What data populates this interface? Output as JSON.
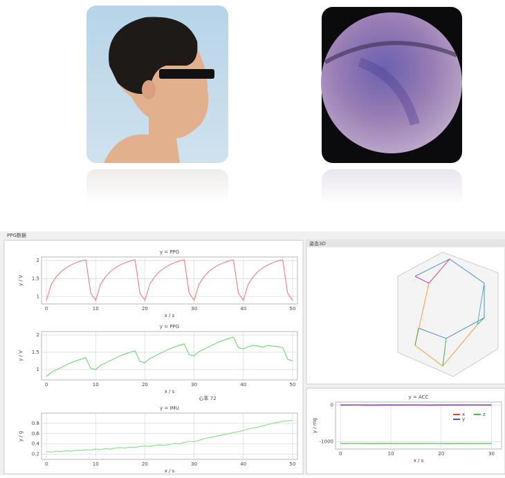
{
  "window": {
    "title": "PPG数据",
    "panel3d_title": "姿态3D",
    "status": "心率 72"
  },
  "plots": [
    {
      "title": "y = PPG",
      "xlabel": "x / s",
      "ylabel": "y / V",
      "x": [
        0,
        1,
        2,
        3,
        4,
        5,
        6,
        7,
        8,
        9,
        10,
        11,
        12,
        13,
        14,
        15,
        16,
        17,
        18,
        19,
        20,
        21,
        22,
        23,
        24,
        25,
        26,
        27,
        28,
        29,
        30,
        31,
        32,
        33,
        34,
        35,
        36,
        37,
        38,
        39,
        40,
        41,
        42,
        43,
        44,
        45,
        46,
        47,
        48,
        49,
        50
      ],
      "xlim": [
        -1,
        51
      ],
      "xticks": [
        0,
        10,
        20,
        30,
        40,
        50
      ],
      "ylim": [
        0.8,
        2.1
      ],
      "yticks": [
        1,
        1.5,
        2
      ],
      "series": [
        {
          "color": "#e8868a",
          "values": [
            0.9,
            1.35,
            1.55,
            1.7,
            1.8,
            1.88,
            1.94,
            1.99,
            2.02,
            1.1,
            0.9,
            1.35,
            1.55,
            1.7,
            1.8,
            1.88,
            1.94,
            1.99,
            2.02,
            1.1,
            0.9,
            1.35,
            1.55,
            1.7,
            1.8,
            1.88,
            1.94,
            1.99,
            2.02,
            1.1,
            0.9,
            1.35,
            1.55,
            1.7,
            1.8,
            1.88,
            1.94,
            1.99,
            2.02,
            1.1,
            0.9,
            1.35,
            1.55,
            1.7,
            1.8,
            1.88,
            1.94,
            1.99,
            2.02,
            1.1,
            0.9
          ]
        }
      ]
    },
    {
      "title": "y = PPG",
      "xlabel": "x / s",
      "ylabel": "y / V",
      "x": [
        0,
        1,
        2,
        3,
        4,
        5,
        6,
        7,
        8,
        9,
        10,
        11,
        12,
        13,
        14,
        15,
        16,
        17,
        18,
        19,
        20,
        21,
        22,
        23,
        24,
        25,
        26,
        27,
        28,
        29,
        30,
        31,
        32,
        33,
        34,
        35,
        36,
        37,
        38,
        39,
        40,
        41,
        42,
        43,
        44,
        45,
        46,
        47,
        48,
        49,
        50
      ],
      "xlim": [
        -1,
        51
      ],
      "xticks": [
        0,
        10,
        20,
        30,
        40,
        50
      ],
      "ylim": [
        0.7,
        2.1
      ],
      "yticks": [
        1,
        1.5,
        2
      ],
      "series": [
        {
          "color": "#7dd67d",
          "values": [
            0.8,
            0.92,
            0.99,
            1.06,
            1.13,
            1.2,
            1.25,
            1.3,
            1.34,
            1.03,
            1.0,
            1.12,
            1.19,
            1.26,
            1.33,
            1.4,
            1.45,
            1.5,
            1.54,
            1.23,
            1.2,
            1.32,
            1.39,
            1.46,
            1.53,
            1.6,
            1.65,
            1.7,
            1.74,
            1.43,
            1.4,
            1.52,
            1.59,
            1.66,
            1.73,
            1.8,
            1.85,
            1.9,
            1.94,
            1.63,
            1.6,
            1.66,
            1.7,
            1.68,
            1.65,
            1.7,
            1.68,
            1.66,
            1.64,
            1.3,
            1.25
          ]
        }
      ]
    },
    {
      "title": "y = IMU",
      "xlabel": "x / s",
      "ylabel": "y / g",
      "x": [
        0,
        1,
        2,
        3,
        4,
        5,
        6,
        7,
        8,
        9,
        10,
        11,
        12,
        13,
        14,
        15,
        16,
        17,
        18,
        19,
        20,
        21,
        22,
        23,
        24,
        25,
        26,
        27,
        28,
        29,
        30,
        31,
        32,
        33,
        34,
        35,
        36,
        37,
        38,
        39,
        40,
        41,
        42,
        43,
        44,
        45,
        46,
        47,
        48,
        49,
        50
      ],
      "xlim": [
        -1,
        51
      ],
      "xticks": [
        0,
        10,
        20,
        30,
        40,
        50
      ],
      "ylim": [
        0.1,
        1.0
      ],
      "yticks": [
        0.2,
        0.4,
        0.6,
        0.8
      ],
      "series": [
        {
          "color": "#8ee08e",
          "values": [
            0.25,
            0.24,
            0.26,
            0.25,
            0.27,
            0.26,
            0.28,
            0.27,
            0.29,
            0.28,
            0.3,
            0.29,
            0.31,
            0.3,
            0.32,
            0.33,
            0.32,
            0.34,
            0.33,
            0.35,
            0.36,
            0.35,
            0.37,
            0.38,
            0.37,
            0.39,
            0.41,
            0.4,
            0.43,
            0.45,
            0.44,
            0.47,
            0.5,
            0.52,
            0.54,
            0.56,
            0.58,
            0.6,
            0.62,
            0.64,
            0.66,
            0.69,
            0.71,
            0.73,
            0.75,
            0.78,
            0.8,
            0.82,
            0.84,
            0.85,
            0.86
          ]
        }
      ]
    },
    {
      "title": "y = ACC",
      "xlabel": "x / s",
      "ylabel": "y / mg",
      "x": [
        0,
        3,
        6,
        9,
        12,
        15,
        18,
        21,
        24,
        27,
        30
      ],
      "xlim": [
        -1,
        32
      ],
      "xticks": [
        0,
        10,
        20,
        30
      ],
      "ylim": [
        -1200,
        80
      ],
      "yticks": [
        -1000,
        0
      ],
      "series": [
        {
          "name": "x",
          "color": "#e04040",
          "values": [
            -8,
            -6,
            -9,
            -7,
            -8,
            -6,
            -9,
            -7,
            -8,
            -6,
            -8
          ]
        },
        {
          "name": "y",
          "color": "#5050d0",
          "values": [
            2,
            4,
            1,
            3,
            2,
            4,
            1,
            3,
            2,
            4,
            2
          ]
        },
        {
          "name": "z",
          "color": "#40c040",
          "values": [
            -1050,
            -1048,
            -1052,
            -1049,
            -1051,
            -1050,
            -1048,
            -1052,
            -1049,
            -1051,
            -1050
          ]
        }
      ]
    }
  ]
}
